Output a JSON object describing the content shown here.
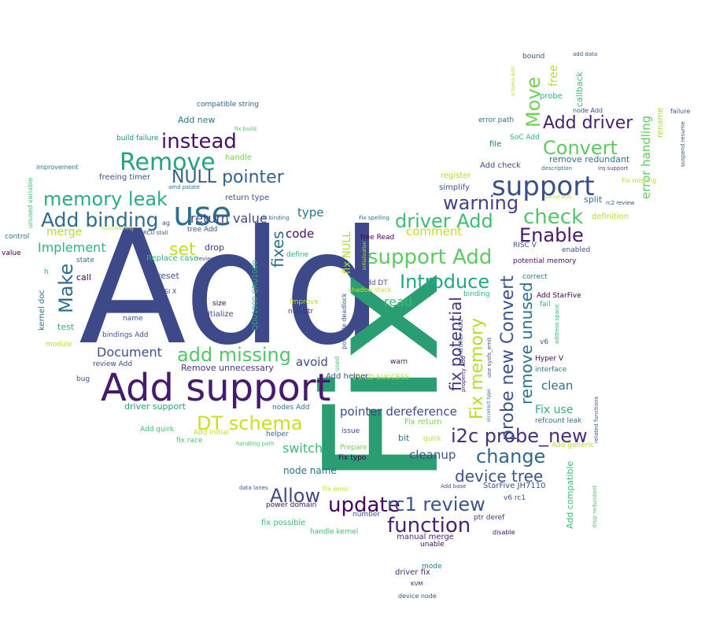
{
  "words": [
    {
      "text": "Add",
      "color": "#3e4989"
    },
    {
      "text": "Fix",
      "color": "#2a9d72"
    },
    {
      "text": "Add support",
      "color": "#461a6d"
    },
    {
      "text": "use",
      "color": "#2e6f8e"
    },
    {
      "text": "Remove",
      "color": "#24a281"
    },
    {
      "text": "support",
      "color": "#3a4f8a"
    },
    {
      "text": "instead",
      "color": "#471063"
    },
    {
      "text": "DT schema",
      "color": "#c8e020"
    },
    {
      "text": "Add binding",
      "color": "#2e6b8e"
    },
    {
      "text": "memory leak",
      "color": "#2bac84"
    },
    {
      "text": "NULL pointer",
      "color": "#35608d"
    },
    {
      "text": "add missing",
      "color": "#52c569"
    },
    {
      "text": "support Add",
      "color": "#5ec962"
    },
    {
      "text": "Introduce",
      "color": "#22a785"
    },
    {
      "text": "driver Add",
      "color": "#3fbc73"
    },
    {
      "text": "warning",
      "color": "#404387"
    },
    {
      "text": "check",
      "color": "#53c568"
    },
    {
      "text": "Enable",
      "color": "#48186a"
    },
    {
      "text": "Convert",
      "color": "#5ec962"
    },
    {
      "text": "Add driver",
      "color": "#481f70"
    },
    {
      "text": "Move",
      "color": "#73d056"
    },
    {
      "text": "i2c probe_new",
      "color": "#472d7b"
    },
    {
      "text": "change",
      "color": "#31668e"
    },
    {
      "text": "probe new Convert",
      "color": "#3b528b"
    },
    {
      "text": "Fix memory",
      "color": "#b5de2b"
    },
    {
      "text": "fix potential",
      "color": "#46327e"
    },
    {
      "text": "remove unused",
      "color": "#2c728e"
    },
    {
      "text": "device tree",
      "color": "#3b528b"
    },
    {
      "text": "update",
      "color": "#450457"
    },
    {
      "text": "rc1 review",
      "color": "#3b528b"
    },
    {
      "text": "function",
      "color": "#482374"
    },
    {
      "text": "Allow",
      "color": "#3e4989"
    },
    {
      "text": "Make",
      "color": "#2f6c8e"
    },
    {
      "text": "set",
      "color": "#c0df25"
    },
    {
      "text": "fixes",
      "color": "#2c718e"
    },
    {
      "text": "Document",
      "color": "#3b528b"
    },
    {
      "text": "Implement",
      "color": "#2db27d"
    },
    {
      "text": "merge",
      "color": "#b5de2b"
    },
    {
      "text": "return value",
      "color": "#3e4989"
    },
    {
      "text": "pointer dereference",
      "color": "#3e4989"
    },
    {
      "text": "cleanup",
      "color": "#3b528b"
    },
    {
      "text": "clean",
      "color": "#2e6f8e"
    },
    {
      "text": "Fix use",
      "color": "#2ab07f"
    },
    {
      "text": "read",
      "color": "#3dbc74"
    },
    {
      "text": "switch",
      "color": "#3cbb75"
    },
    {
      "text": "avoid",
      "color": "#3e4989"
    },
    {
      "text": "comment",
      "color": "#c2df23"
    },
    {
      "text": "type",
      "color": "#2c728e"
    },
    {
      "text": "code",
      "color": "#471063"
    },
    {
      "text": "error handling",
      "color": "#63cb5f"
    },
    {
      "text": "node name",
      "color": "#2e6e8e"
    },
    {
      "text": "fix NULL",
      "color": "#addc30"
    },
    {
      "text": "free",
      "color": "#b8de29"
    },
    {
      "text": "callback",
      "color": "#3dbc74"
    },
    {
      "text": "rename",
      "color": "#a2da37"
    },
    {
      "text": "remove redundant",
      "color": "#2d718e"
    },
    {
      "text": "split",
      "color": "#2b758e"
    },
    {
      "text": "Add compatible",
      "color": "#3dbc74"
    },
    {
      "text": "Add check",
      "color": "#3e4989"
    },
    {
      "text": "simplify",
      "color": "#3b528b"
    },
    {
      "text": "register",
      "color": "#addc30"
    },
    {
      "text": "compatible string",
      "color": "#35608d"
    },
    {
      "text": "Add new",
      "color": "#2a788e"
    },
    {
      "text": "build failure",
      "color": "#23898e"
    },
    {
      "text": "handle",
      "color": "#7ad151"
    },
    {
      "text": "return type",
      "color": "#3b528b"
    },
    {
      "text": "freeing timer",
      "color": "#3b528b"
    },
    {
      "text": "drop",
      "color": "#46337f"
    },
    {
      "text": "define",
      "color": "#2db27d"
    },
    {
      "text": "free Read",
      "color": "#440154"
    },
    {
      "text": "fix possible",
      "color": "#3dbc74"
    },
    {
      "text": "handle kernel",
      "color": "#3dbc74"
    },
    {
      "text": "manual merge",
      "color": "#482878"
    },
    {
      "text": "unable",
      "color": "#471063"
    },
    {
      "text": "driver fix",
      "color": "#472c7a"
    },
    {
      "text": "mode",
      "color": "#2a788e"
    },
    {
      "text": "KVM",
      "color": "#471063"
    },
    {
      "text": "device node",
      "color": "#3b528b"
    },
    {
      "text": "power domain",
      "color": "#471063"
    },
    {
      "text": "Fix typo",
      "color": "#440154"
    },
    {
      "text": "Prepare",
      "color": "#7ad151"
    },
    {
      "text": "bit",
      "color": "#2c718e"
    },
    {
      "text": "quirk",
      "color": "#b5de2b"
    },
    {
      "text": "Fix return",
      "color": "#7ad151"
    },
    {
      "text": "issue",
      "color": "#3e4989"
    },
    {
      "text": "warn",
      "color": "#471063"
    },
    {
      "text": "BUILD SUCCESS",
      "color": "#a8db34"
    },
    {
      "text": "Add helper",
      "color": "#3b528b"
    },
    {
      "text": "nodes Add",
      "color": "#2c728e"
    },
    {
      "text": "helper",
      "color": "#2e6e8e"
    },
    {
      "text": "Add initial",
      "color": "#c8e020"
    },
    {
      "text": "fix race",
      "color": "#52c569"
    },
    {
      "text": "handling path",
      "color": "#52c569"
    },
    {
      "text": "Add quirk",
      "color": "#3dbc74"
    },
    {
      "text": "driver support",
      "color": "#2a9d72"
    },
    {
      "text": "bug",
      "color": "#3b528b"
    },
    {
      "text": "review Add",
      "color": "#3e4989"
    },
    {
      "text": "bindings Add",
      "color": "#3b528b"
    },
    {
      "text": "name",
      "color": "#3b528b"
    },
    {
      "text": "test",
      "color": "#2db27d"
    },
    {
      "text": "module",
      "color": "#b5de2b"
    },
    {
      "text": "Remove unnecessary",
      "color": "#46327e"
    },
    {
      "text": "size",
      "color": "#440154"
    },
    {
      "text": "initialize",
      "color": "#3e4989"
    },
    {
      "text": "null ptr",
      "color": "#46327e"
    },
    {
      "text": "Improve",
      "color": "#b5de2b"
    },
    {
      "text": "MSI X",
      "color": "#3e4989"
    },
    {
      "text": "reset",
      "color": "#3b528b"
    },
    {
      "text": "call",
      "color": "#440154"
    },
    {
      "text": "state",
      "color": "#2c728e"
    },
    {
      "text": "Replace case",
      "color": "#2db27d"
    },
    {
      "text": "review rc1",
      "color": "#3b528b"
    },
    {
      "text": "kernel doc",
      "color": "#2e6e8e"
    },
    {
      "text": "h",
      "color": "#2db27d"
    },
    {
      "text": "value",
      "color": "#440154"
    },
    {
      "text": "control",
      "color": "#2a788e"
    },
    {
      "text": "unused variable",
      "color": "#3dbc74"
    },
    {
      "text": "improvement",
      "color": "#2c728e"
    },
    {
      "text": "build warning",
      "color": "#b5de2b"
    },
    {
      "text": "RCU stall",
      "color": "#3b528b"
    },
    {
      "text": "ag",
      "color": "#3e4989"
    },
    {
      "text": "tree Add",
      "color": "#3b528b"
    },
    {
      "text": "dt binding",
      "color": "#2c728e"
    },
    {
      "text": "amd pstate",
      "color": "#2c728e"
    },
    {
      "text": "fix build",
      "color": "#52c569"
    },
    {
      "text": "QDU1000 QRU1000",
      "color": "#2db27d"
    },
    {
      "text": "possible deadlock",
      "color": "#3b528b"
    },
    {
      "text": "used",
      "color": "#52c569"
    },
    {
      "text": "initialization",
      "color": "#c8e020"
    },
    {
      "text": "shadow stack",
      "color": "#c8e020"
    },
    {
      "text": "Add DT",
      "color": "#3b528b"
    },
    {
      "text": "Fix spelling",
      "color": "#2c728e"
    },
    {
      "text": "controller Add",
      "color": "#3b528b"
    },
    {
      "text": "property Add",
      "color": "#471063"
    },
    {
      "text": "use sysfs_emit",
      "color": "#3b528b"
    },
    {
      "text": "incorrect type",
      "color": "#2c728e"
    },
    {
      "text": "RISC V",
      "color": "#3e4989"
    },
    {
      "text": "potential memory",
      "color": "#471063"
    },
    {
      "text": "enabled",
      "color": "#3b528b"
    },
    {
      "text": "correct",
      "color": "#2c728e"
    },
    {
      "text": "binding",
      "color": "#2db27d"
    },
    {
      "text": "Add StarFive",
      "color": "#440154"
    },
    {
      "text": "fail",
      "color": "#2db27d"
    },
    {
      "text": "address space",
      "color": "#2db27d"
    },
    {
      "text": "v6",
      "color": "#3b528b"
    },
    {
      "text": "Hyper V",
      "color": "#440154"
    },
    {
      "text": "interface",
      "color": "#2a788e"
    },
    {
      "text": "refcount leak",
      "color": "#2c728e"
    },
    {
      "text": "related functions",
      "color": "#3b528b"
    },
    {
      "text": "Add generic",
      "color": "#b5de2b"
    },
    {
      "text": "StarFive JH7110",
      "color": "#3b528b"
    },
    {
      "text": "v6 rc1",
      "color": "#3b528b"
    },
    {
      "text": "drop redundant",
      "color": "#52c569"
    },
    {
      "text": "Fix error",
      "color": "#c8e020"
    },
    {
      "text": "Add base",
      "color": "#3b528b"
    },
    {
      "text": "number",
      "color": "#3b528b"
    },
    {
      "text": "ptr deref",
      "color": "#46327e"
    },
    {
      "text": "disable",
      "color": "#471063"
    },
    {
      "text": "data lanes",
      "color": "#3b528b"
    },
    {
      "text": "definition",
      "color": "#b5de2b"
    },
    {
      "text": "rc2 review",
      "color": "#3b528b"
    },
    {
      "text": "kernel BUG",
      "color": "#b5de2b"
    },
    {
      "text": "Fix missing",
      "color": "#b5de2b"
    },
    {
      "text": "irq support",
      "color": "#3b528b"
    },
    {
      "text": "description",
      "color": "#2c728e"
    },
    {
      "text": "node Add",
      "color": "#3b528b"
    },
    {
      "text": "suspend resume",
      "color": "#3b528b"
    },
    {
      "text": "failure",
      "color": "#3b528b"
    },
    {
      "text": "SoC Add",
      "color": "#2db27d"
    },
    {
      "text": "file",
      "color": "#2c728e"
    },
    {
      "text": "error path",
      "color": "#2c728e"
    },
    {
      "text": "probe",
      "color": "#2db27d"
    },
    {
      "text": "schema Add",
      "color": "#b5de2b"
    },
    {
      "text": "bound",
      "color": "#3b528b"
    },
    {
      "text": "add data",
      "color": "#3b528b"
    }
  ]
}
